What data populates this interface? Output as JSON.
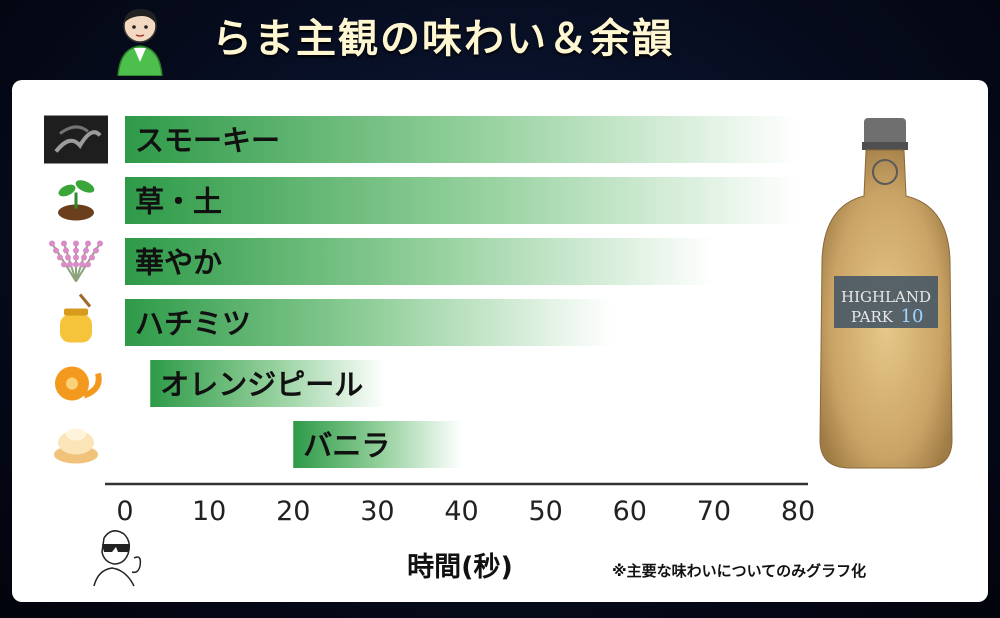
{
  "header": {
    "title": "らま主観の味わい＆余韻"
  },
  "note": "※主要な味わいについてのみグラフ化",
  "bottle_label": {
    "line1": "HIGHLAND",
    "line2": "PARK",
    "age": "10"
  },
  "colors": {
    "bar_start": "#2e9a48",
    "bar_end": "#ffffff",
    "axis": "#222222",
    "title_text": "#fff6d2"
  },
  "chart_data": {
    "type": "bar",
    "orientation": "horizontal",
    "categories": [
      "スモーキー",
      "草・土",
      "華やか",
      "ハチミツ",
      "オレンジピール",
      "バニラ"
    ],
    "icons": [
      "smoke-icon",
      "sprout-icon",
      "heather-icon",
      "honey-jar-icon",
      "orange-peel-icon",
      "vanilla-cream-icon"
    ],
    "ranges": [
      [
        0,
        80
      ],
      [
        0,
        80
      ],
      [
        0,
        70
      ],
      [
        0,
        58
      ],
      [
        3,
        31
      ],
      [
        20,
        40
      ]
    ],
    "xlabel": "時間(秒)",
    "xlim": [
      0,
      80
    ],
    "xticks": [
      0,
      10,
      20,
      30,
      40,
      50,
      60,
      70,
      80
    ],
    "grid": false,
    "gradient_fade": "bars fade from green at start to white at end"
  }
}
